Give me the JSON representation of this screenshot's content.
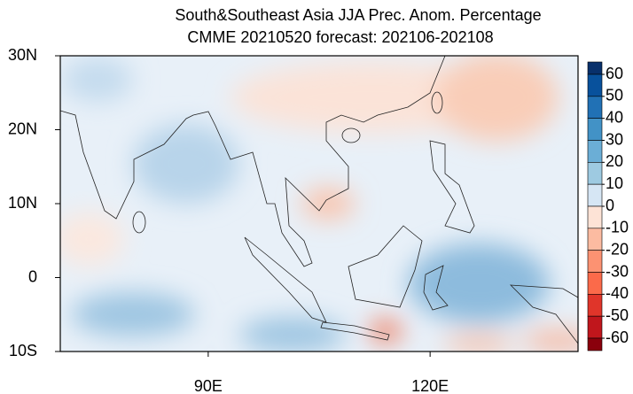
{
  "map": {
    "title": "South&Southeast Asia JJA Prec. Anom. Percentage",
    "subtitle": "CMME 20210520 forecast: 202106-202108",
    "xlim": [
      70,
      140
    ],
    "ylim": [
      -10,
      30
    ],
    "xticks": [
      {
        "value": 90,
        "label": "90E"
      },
      {
        "value": 120,
        "label": "120E"
      }
    ],
    "yticks": [
      {
        "value": 30,
        "label": "30N"
      },
      {
        "value": 20,
        "label": "20N"
      },
      {
        "value": 10,
        "label": "10N"
      },
      {
        "value": 0,
        "label": "0"
      },
      {
        "value": -10,
        "label": "10S"
      }
    ],
    "colorbar": {
      "ticks": [
        60,
        50,
        40,
        30,
        20,
        10,
        0,
        -10,
        -20,
        -30,
        -40,
        -50,
        -60
      ],
      "colors": [
        "#08306b",
        "#08519c",
        "#2171b5",
        "#4292c6",
        "#6baed6",
        "#9ecae1",
        "#d6e6f4",
        "#fde3d6",
        "#fcbba1",
        "#fc9272",
        "#fb6a4a",
        "#e0352a",
        "#c0161c",
        "#8a000c"
      ]
    }
  }
}
